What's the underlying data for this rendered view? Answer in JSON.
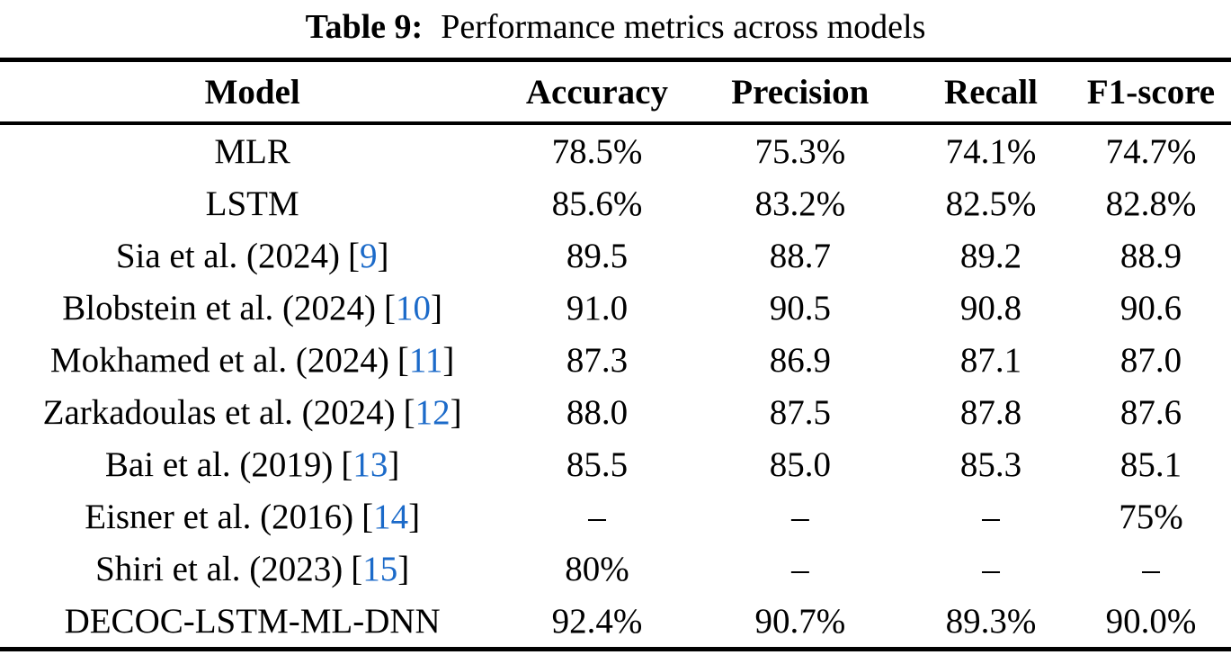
{
  "caption": {
    "label": "Table 9:",
    "text": "Performance metrics across models"
  },
  "table": {
    "columns": [
      "Model",
      "Accuracy",
      "Precision",
      "Recall",
      "F1-score"
    ],
    "rows": [
      {
        "model": "MLR",
        "citation": null,
        "values": [
          "78.5%",
          "75.3%",
          "74.1%",
          "74.7%"
        ]
      },
      {
        "model": "LSTM",
        "citation": null,
        "values": [
          "85.6%",
          "83.2%",
          "82.5%",
          "82.8%"
        ]
      },
      {
        "model": "Sia et al. (2024)",
        "citation": "9",
        "values": [
          "89.5",
          "88.7",
          "89.2",
          "88.9"
        ]
      },
      {
        "model": "Blobstein et al. (2024)",
        "citation": "10",
        "values": [
          "91.0",
          "90.5",
          "90.8",
          "90.6"
        ]
      },
      {
        "model": "Mokhamed et al. (2024)",
        "citation": "11",
        "values": [
          "87.3",
          "86.9",
          "87.1",
          "87.0"
        ]
      },
      {
        "model": "Zarkadoulas et al. (2024)",
        "citation": "12",
        "values": [
          "88.0",
          "87.5",
          "87.8",
          "87.6"
        ]
      },
      {
        "model": "Bai et al. (2019)",
        "citation": "13",
        "values": [
          "85.5",
          "85.0",
          "85.3",
          "85.1"
        ]
      },
      {
        "model": "Eisner et al. (2016)",
        "citation": "14",
        "values": [
          "–",
          "–",
          "–",
          "75%"
        ]
      },
      {
        "model": "Shiri et al. (2023)",
        "citation": "15",
        "values": [
          "80%",
          "–",
          "–",
          "–"
        ]
      },
      {
        "model": "DECOC-LSTM-ML-DNN",
        "citation": null,
        "values": [
          "92.4%",
          "90.7%",
          "89.3%",
          "90.0%"
        ]
      }
    ]
  },
  "colors": {
    "citation_blue": "#1b6ac9",
    "text": "#000000",
    "rule": "#000000",
    "background": "#ffffff"
  }
}
